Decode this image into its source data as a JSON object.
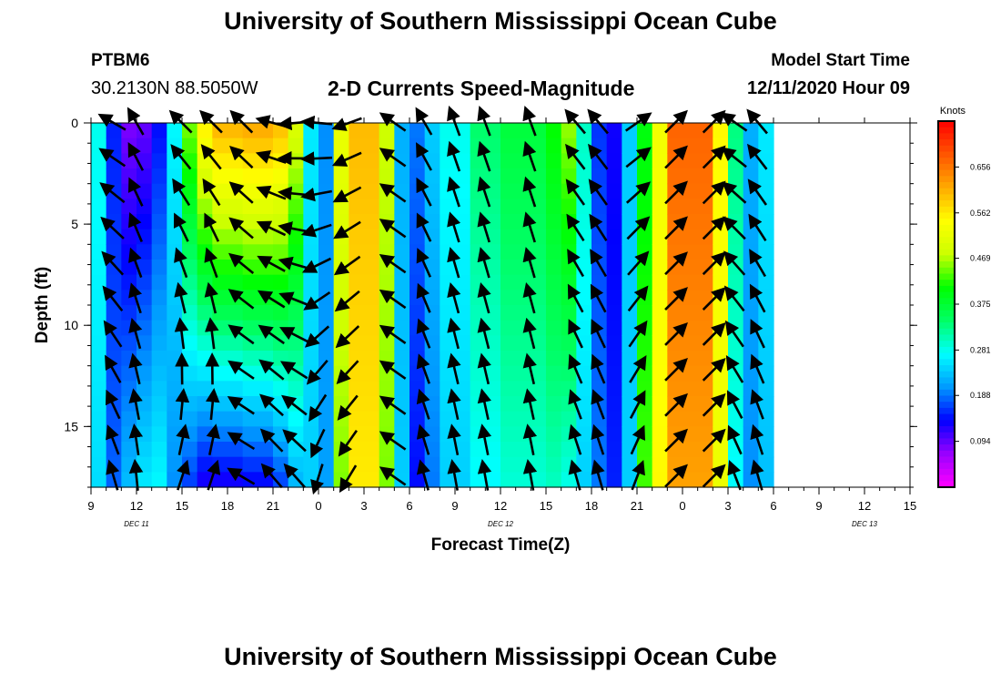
{
  "header": {
    "title_top": "University of Southern Mississippi Ocean Cube",
    "title_bottom": "University of Southern Mississippi Ocean Cube",
    "station_id": "PTBM6",
    "station_coords": "30.2130N 88.5050W",
    "subtitle": "2-D Currents Speed-Magnitude",
    "model_start_label": "Model Start Time",
    "model_start_value": "12/11/2020 Hour 09"
  },
  "chart_data": {
    "type": "heatmap",
    "title": "2-D Currents Speed-Magnitude",
    "xlabel": "Forecast Time(Z)",
    "ylabel": "Depth (ft)",
    "x_tick_labels": [
      "9",
      "12",
      "15",
      "18",
      "21",
      "0",
      "3",
      "6",
      "9",
      "12",
      "15",
      "18",
      "21",
      "0",
      "3",
      "6",
      "9",
      "12",
      "15"
    ],
    "date_labels": [
      "DEC 11",
      "DEC 12",
      "DEC 13"
    ],
    "date_label_hours": [
      1.5,
      25.5,
      49.5
    ],
    "x_range_hours": [
      0,
      54
    ],
    "y_ticks": [
      0,
      5,
      10,
      15
    ],
    "y_range": [
      0,
      18
    ],
    "colorbar": {
      "unit": "Knots",
      "ticks": [
        0.094,
        0.188,
        0.281,
        0.375,
        0.469,
        0.562,
        0.656
      ],
      "range": [
        0.0,
        0.75
      ]
    },
    "colormap": [
      "#ff00ff",
      "#9900ff",
      "#0000ff",
      "#0099ff",
      "#00ffff",
      "#00ff66",
      "#00ff00",
      "#ccff00",
      "#ffff00",
      "#ffaa00",
      "#ff5500",
      "#ff0000"
    ],
    "speed_bands": [
      {
        "hours": [
          0,
          1
        ],
        "surface": 0.28,
        "bottom": 0.25
      },
      {
        "hours": [
          1,
          2
        ],
        "surface": 0.15,
        "bottom": 0.18
      },
      {
        "hours": [
          2,
          3
        ],
        "surface": 0.08,
        "bottom": 0.23
      },
      {
        "hours": [
          3,
          4
        ],
        "surface": 0.09,
        "bottom": 0.26
      },
      {
        "hours": [
          4,
          5
        ],
        "surface": 0.14,
        "bottom": 0.27
      },
      {
        "hours": [
          5,
          6
        ],
        "surface": 0.27,
        "bottom": 0.2
      },
      {
        "hours": [
          6,
          7
        ],
        "surface": 0.45,
        "bottom": 0.16
      },
      {
        "hours": [
          7,
          8
        ],
        "surface": 0.56,
        "bottom": 0.12
      },
      {
        "hours": [
          8,
          10
        ],
        "surface": 0.61,
        "bottom": 0.12
      },
      {
        "hours": [
          10,
          12
        ],
        "surface": 0.62,
        "bottom": 0.13
      },
      {
        "hours": [
          12,
          13
        ],
        "surface": 0.6,
        "bottom": 0.16
      },
      {
        "hours": [
          13,
          14
        ],
        "surface": 0.5,
        "bottom": 0.22
      },
      {
        "hours": [
          14,
          15
        ],
        "surface": 0.26,
        "bottom": 0.24
      },
      {
        "hours": [
          15,
          16
        ],
        "surface": 0.2,
        "bottom": 0.21
      },
      {
        "hours": [
          16,
          17
        ],
        "surface": 0.52,
        "bottom": 0.45
      },
      {
        "hours": [
          17,
          19
        ],
        "surface": 0.6,
        "bottom": 0.56
      },
      {
        "hours": [
          19,
          20
        ],
        "surface": 0.48,
        "bottom": 0.45
      },
      {
        "hours": [
          20,
          21
        ],
        "surface": 0.22,
        "bottom": 0.24
      },
      {
        "hours": [
          21,
          22
        ],
        "surface": 0.19,
        "bottom": 0.14
      },
      {
        "hours": [
          22,
          23
        ],
        "surface": 0.24,
        "bottom": 0.19
      },
      {
        "hours": [
          23,
          25
        ],
        "surface": 0.28,
        "bottom": 0.24
      },
      {
        "hours": [
          25,
          27
        ],
        "surface": 0.34,
        "bottom": 0.27
      },
      {
        "hours": [
          27,
          30
        ],
        "surface": 0.37,
        "bottom": 0.29
      },
      {
        "hours": [
          30,
          31
        ],
        "surface": 0.41,
        "bottom": 0.3
      },
      {
        "hours": [
          31,
          32
        ],
        "surface": 0.46,
        "bottom": 0.28
      },
      {
        "hours": [
          32,
          33
        ],
        "surface": 0.3,
        "bottom": 0.24
      },
      {
        "hours": [
          33,
          34
        ],
        "surface": 0.16,
        "bottom": 0.19
      },
      {
        "hours": [
          34,
          35
        ],
        "surface": 0.13,
        "bottom": 0.15
      },
      {
        "hours": [
          35,
          36
        ],
        "surface": 0.24,
        "bottom": 0.24
      },
      {
        "hours": [
          36,
          37
        ],
        "surface": 0.4,
        "bottom": 0.43
      },
      {
        "hours": [
          37,
          38
        ],
        "surface": 0.53,
        "bottom": 0.55
      },
      {
        "hours": [
          38,
          41
        ],
        "surface": 0.67,
        "bottom": 0.62
      },
      {
        "hours": [
          41,
          42
        ],
        "surface": 0.55,
        "bottom": 0.52
      },
      {
        "hours": [
          42,
          43
        ],
        "surface": 0.33,
        "bottom": 0.27
      },
      {
        "hours": [
          43,
          44
        ],
        "surface": 0.22,
        "bottom": 0.2
      },
      {
        "hours": [
          44,
          45
        ],
        "surface": 0.26,
        "bottom": 0.23
      }
    ],
    "arrow_hours": [
      1.5,
      3,
      6,
      8,
      10,
      12,
      13.5,
      15,
      17,
      20,
      22,
      24,
      26,
      29,
      32,
      33.5,
      36,
      38.5,
      41,
      42.5,
      44
    ],
    "arrow_depths": [
      0,
      1.75,
      3.5,
      5.25,
      7,
      8.75,
      10.5,
      12.25,
      14,
      15.75,
      17.5
    ],
    "arrow_regimes": [
      {
        "from_hour": 0,
        "to_hour": 2,
        "direction_deg": 300,
        "bottom_direction_deg": 345
      },
      {
        "from_hour": 2,
        "to_hour": 5,
        "direction_deg": 330,
        "bottom_direction_deg": 355
      },
      {
        "from_hour": 5,
        "to_hour": 9,
        "direction_deg": 315,
        "bottom_direction_deg": 20
      },
      {
        "from_hour": 9,
        "to_hour": 10.5,
        "direction_deg": 315,
        "bottom_direction_deg": 300
      },
      {
        "from_hour": 10.5,
        "to_hour": 12.5,
        "direction_deg": 285,
        "bottom_direction_deg": 320
      },
      {
        "from_hour": 12.5,
        "to_hour": 14.5,
        "direction_deg": 265,
        "bottom_direction_deg": 320
      },
      {
        "from_hour": 14.5,
        "to_hour": 16,
        "direction_deg": 275,
        "bottom_direction_deg": 195
      },
      {
        "from_hour": 16,
        "to_hour": 20,
        "direction_deg": 250,
        "bottom_direction_deg": 210
      },
      {
        "from_hour": 20,
        "to_hour": 22,
        "direction_deg": 305,
        "bottom_direction_deg": 305
      },
      {
        "from_hour": 22,
        "to_hour": 24,
        "direction_deg": 330,
        "bottom_direction_deg": 345
      },
      {
        "from_hour": 24,
        "to_hour": 31,
        "direction_deg": 340,
        "bottom_direction_deg": 350
      },
      {
        "from_hour": 31,
        "to_hour": 34,
        "direction_deg": 320,
        "bottom_direction_deg": 345
      },
      {
        "from_hour": 34,
        "to_hour": 37,
        "direction_deg": 55,
        "bottom_direction_deg": 20
      },
      {
        "from_hour": 37,
        "to_hour": 41.5,
        "direction_deg": 45,
        "bottom_direction_deg": 45
      },
      {
        "from_hour": 41.5,
        "to_hour": 43.5,
        "direction_deg": 305,
        "bottom_direction_deg": 340
      },
      {
        "from_hour": 43.5,
        "to_hour": 54,
        "direction_deg": 320,
        "bottom_direction_deg": 345
      }
    ]
  }
}
